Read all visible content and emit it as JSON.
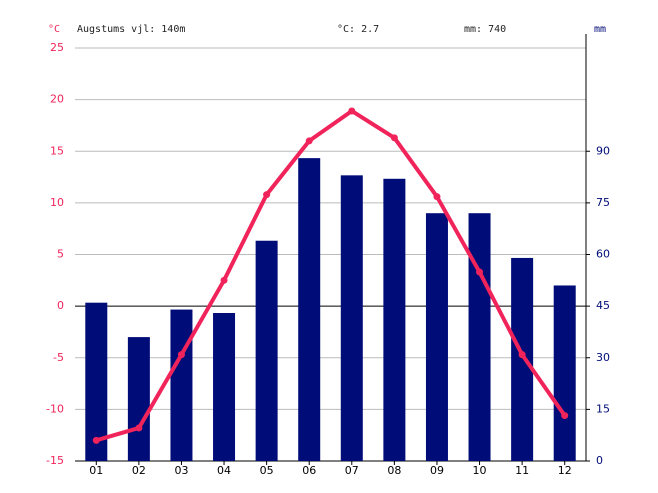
{
  "chart_data": {
    "type": "climate",
    "y_unit": "°C",
    "y2_unit": "mm",
    "altitude_label": "Augstums vjl: 140m",
    "temp_label": "°C: 2.7",
    "precip_label": "mm: 740",
    "categories": [
      "01",
      "02",
      "03",
      "04",
      "05",
      "06",
      "07",
      "08",
      "09",
      "10",
      "11",
      "12"
    ],
    "temperature": {
      "color": "#f0245a",
      "axis": "y",
      "values": [
        -13.0,
        -11.8,
        -4.7,
        2.5,
        10.8,
        16.0,
        18.9,
        16.3,
        10.6,
        3.3,
        -4.7,
        -10.6
      ]
    },
    "precipitation": {
      "color": "#000c78",
      "axis": "y2",
      "values": [
        46,
        36,
        44,
        43,
        64,
        88,
        83,
        82,
        72,
        72,
        59,
        51
      ]
    },
    "ylim": [
      -15,
      25
    ],
    "yticks": [
      -15,
      -10,
      -5,
      0,
      5,
      10,
      15,
      20,
      25
    ],
    "y2lim": [
      0,
      120
    ],
    "y2ticks": [
      0,
      15,
      30,
      45,
      60,
      75,
      90
    ],
    "grid": true
  }
}
